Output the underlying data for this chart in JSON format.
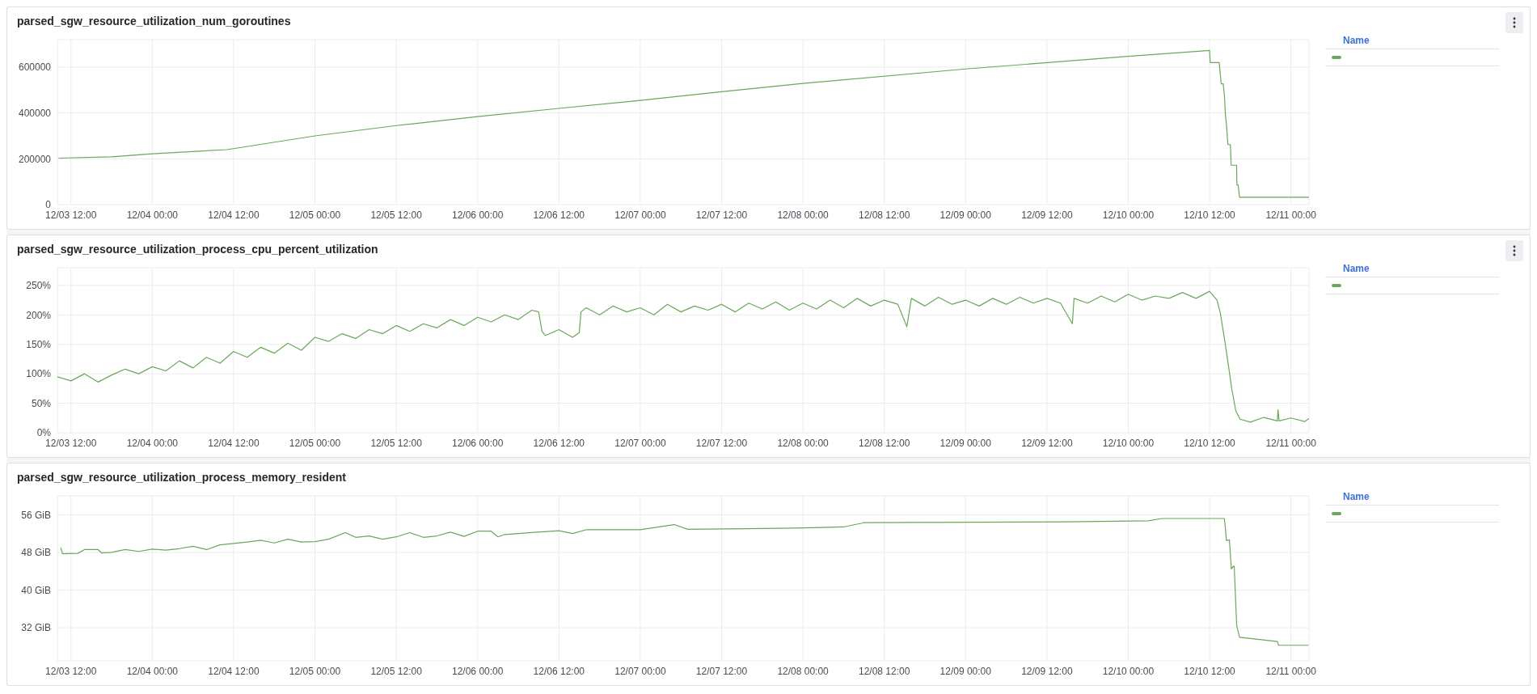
{
  "chart_data": [
    {
      "type": "line",
      "title": "parsed_sgw_resource_utilization_num_goroutines",
      "legend_title": "Name",
      "grid": true,
      "marker": "none",
      "xlim": [
        "--12-03T10:00",
        "--12-11T02:40"
      ],
      "xticks": [
        {
          "value": "--12-03T12:00",
          "label": "12/03 12:00"
        },
        {
          "value": "--12-04T00:00",
          "label": "12/04 00:00"
        },
        {
          "value": "--12-04T12:00",
          "label": "12/04 12:00"
        },
        {
          "value": "--12-05T00:00",
          "label": "12/05 00:00"
        },
        {
          "value": "--12-05T12:00",
          "label": "12/05 12:00"
        },
        {
          "value": "--12-06T00:00",
          "label": "12/06 00:00"
        },
        {
          "value": "--12-06T12:00",
          "label": "12/06 12:00"
        },
        {
          "value": "--12-07T00:00",
          "label": "12/07 00:00"
        },
        {
          "value": "--12-07T12:00",
          "label": "12/07 12:00"
        },
        {
          "value": "--12-08T00:00",
          "label": "12/08 00:00"
        },
        {
          "value": "--12-08T12:00",
          "label": "12/08 12:00"
        },
        {
          "value": "--12-09T00:00",
          "label": "12/09 00:00"
        },
        {
          "value": "--12-09T12:00",
          "label": "12/09 12:00"
        },
        {
          "value": "--12-10T00:00",
          "label": "12/10 00:00"
        },
        {
          "value": "--12-10T12:00",
          "label": "12/10 12:00"
        },
        {
          "value": "--12-11T00:00",
          "label": "12/11 00:00"
        }
      ],
      "ylim": [
        0,
        720000
      ],
      "yticks": [
        0,
        200000,
        400000,
        600000
      ],
      "x": [
        "--12-03T10:10",
        "--12-03T18:00",
        "--12-04T00:00",
        "--12-04T11:00",
        "--12-05T00:00",
        "--12-05T12:00",
        "--12-06T00:00",
        "--12-06T12:00",
        "--12-07T00:00",
        "--12-07T12:00",
        "--12-08T00:00",
        "--12-09T00:00",
        "--12-10T00:00",
        "--12-10T12:00",
        "--12-10T12:05",
        "--12-10T13:25",
        "--12-10T13:43",
        "--12-10T14:01",
        "--12-10T14:12",
        "--12-10T14:20",
        "--12-10T14:31",
        "--12-10T14:42",
        "--12-10T15:04",
        "--12-10T15:11",
        "--12-10T15:59",
        "--12-10T16:02",
        "--12-10T16:13",
        "--12-10T16:25",
        "--12-11T02:40"
      ],
      "series": [
        {
          "color": "#6aa85a",
          "values": [
            203000,
            209000,
            222000,
            240000,
            300000,
            345000,
            384000,
            420000,
            455000,
            493000,
            529000,
            592000,
            647000,
            673000,
            620000,
            620000,
            527000,
            527000,
            471000,
            393000,
            340000,
            262000,
            262000,
            172000,
            172000,
            86000,
            86000,
            32000,
            32000
          ]
        }
      ]
    },
    {
      "type": "line",
      "title": "parsed_sgw_resource_utilization_process_cpu_percent_utilization",
      "legend_title": "Name",
      "grid": true,
      "marker": "none",
      "xlim": [
        "--12-03T10:00",
        "--12-11T02:40"
      ],
      "xticks": [
        {
          "value": "--12-03T12:00",
          "label": "12/03 12:00"
        },
        {
          "value": "--12-04T00:00",
          "label": "12/04 00:00"
        },
        {
          "value": "--12-04T12:00",
          "label": "12/04 12:00"
        },
        {
          "value": "--12-05T00:00",
          "label": "12/05 00:00"
        },
        {
          "value": "--12-05T12:00",
          "label": "12/05 12:00"
        },
        {
          "value": "--12-06T00:00",
          "label": "12/06 00:00"
        },
        {
          "value": "--12-06T12:00",
          "label": "12/06 12:00"
        },
        {
          "value": "--12-07T00:00",
          "label": "12/07 00:00"
        },
        {
          "value": "--12-07T12:00",
          "label": "12/07 12:00"
        },
        {
          "value": "--12-08T00:00",
          "label": "12/08 00:00"
        },
        {
          "value": "--12-08T12:00",
          "label": "12/08 12:00"
        },
        {
          "value": "--12-09T00:00",
          "label": "12/09 00:00"
        },
        {
          "value": "--12-09T12:00",
          "label": "12/09 12:00"
        },
        {
          "value": "--12-10T00:00",
          "label": "12/10 00:00"
        },
        {
          "value": "--12-10T12:00",
          "label": "12/10 12:00"
        },
        {
          "value": "--12-11T00:00",
          "label": "12/11 00:00"
        }
      ],
      "ylim": [
        0,
        280
      ],
      "yticks": [
        {
          "value": 0,
          "label": "0%"
        },
        {
          "value": 50,
          "label": "50%"
        },
        {
          "value": 100,
          "label": "100%"
        },
        {
          "value": 150,
          "label": "150%"
        },
        {
          "value": 200,
          "label": "200%"
        },
        {
          "value": 250,
          "label": "250%"
        }
      ],
      "x": [
        "--12-03T10:00",
        "--12-03T12:00",
        "--12-03T14:00",
        "--12-03T16:00",
        "--12-03T18:00",
        "--12-03T20:00",
        "--12-03T22:00",
        "--12-04T00:00",
        "--12-04T02:00",
        "--12-04T04:00",
        "--12-04T06:00",
        "--12-04T08:00",
        "--12-04T10:00",
        "--12-04T12:00",
        "--12-04T14:00",
        "--12-04T16:00",
        "--12-04T18:00",
        "--12-04T20:00",
        "--12-04T22:00",
        "--12-05T00:00",
        "--12-05T02:00",
        "--12-05T04:00",
        "--12-05T06:00",
        "--12-05T08:00",
        "--12-05T10:00",
        "--12-05T12:00",
        "--12-05T14:00",
        "--12-05T16:00",
        "--12-05T18:00",
        "--12-05T20:00",
        "--12-05T22:00",
        "--12-06T00:00",
        "--12-06T02:00",
        "--12-06T04:00",
        "--12-06T06:00",
        "--12-06T08:00",
        "--12-06T09:00",
        "--12-06T09:30",
        "--12-06T10:00",
        "--12-06T12:00",
        "--12-06T14:00",
        "--12-06T15:00",
        "--12-06T15:15",
        "--12-06T16:00",
        "--12-06T18:00",
        "--12-06T20:00",
        "--12-06T22:00",
        "--12-07T00:00",
        "--12-07T02:00",
        "--12-07T04:00",
        "--12-07T06:00",
        "--12-07T08:00",
        "--12-07T10:00",
        "--12-07T12:00",
        "--12-07T14:00",
        "--12-07T16:00",
        "--12-07T18:00",
        "--12-07T20:00",
        "--12-07T22:00",
        "--12-08T00:00",
        "--12-08T02:00",
        "--12-08T04:00",
        "--12-08T06:00",
        "--12-08T08:00",
        "--12-08T10:00",
        "--12-08T12:00",
        "--12-08T14:00",
        "--12-08T15:20",
        "--12-08T16:00",
        "--12-08T18:00",
        "--12-08T20:00",
        "--12-08T22:00",
        "--12-09T00:00",
        "--12-09T02:00",
        "--12-09T04:00",
        "--12-09T06:00",
        "--12-09T08:00",
        "--12-09T10:00",
        "--12-09T12:00",
        "--12-09T14:00",
        "--12-09T15:45",
        "--12-09T16:00",
        "--12-09T18:00",
        "--12-09T20:00",
        "--12-09T22:00",
        "--12-10T00:00",
        "--12-10T02:00",
        "--12-10T04:00",
        "--12-10T06:00",
        "--12-10T08:00",
        "--12-10T10:00",
        "--12-10T12:00",
        "--12-10T13:06",
        "--12-10T13:35",
        "--12-10T14:19",
        "--12-10T14:49",
        "--12-10T15:15",
        "--12-10T15:52",
        "--12-10T16:30",
        "--12-10T18:00",
        "--12-10T20:00",
        "--12-10T22:00",
        "--12-10T22:06",
        "--12-10T22:15",
        "--12-11T00:00",
        "--12-11T02:00",
        "--12-11T02:40"
      ],
      "series": [
        {
          "color": "#6aa85a",
          "values": [
            95,
            88,
            100,
            86,
            98,
            108,
            100,
            112,
            105,
            122,
            110,
            128,
            118,
            138,
            128,
            145,
            135,
            152,
            140,
            162,
            155,
            168,
            160,
            175,
            168,
            182,
            172,
            185,
            178,
            192,
            182,
            196,
            188,
            200,
            192,
            208,
            205,
            172,
            165,
            175,
            162,
            170,
            205,
            212,
            200,
            215,
            205,
            212,
            200,
            218,
            205,
            215,
            208,
            218,
            205,
            220,
            210,
            222,
            208,
            220,
            210,
            225,
            212,
            228,
            215,
            225,
            218,
            180,
            228,
            215,
            230,
            218,
            225,
            215,
            228,
            218,
            230,
            220,
            228,
            220,
            185,
            228,
            220,
            232,
            222,
            235,
            225,
            232,
            228,
            238,
            228,
            240,
            225,
            203,
            150,
            111,
            76,
            37,
            23,
            18,
            26,
            20,
            39,
            20,
            25,
            19,
            24
          ]
        }
      ]
    },
    {
      "type": "line",
      "title": "parsed_sgw_resource_utilization_process_memory_resident",
      "legend_title": "Name",
      "grid": true,
      "marker": "none",
      "xlim": [
        "--12-03T10:00",
        "--12-11T02:40"
      ],
      "xticks": [
        {
          "value": "--12-03T12:00",
          "label": "12/03 12:00"
        },
        {
          "value": "--12-04T00:00",
          "label": "12/04 00:00"
        },
        {
          "value": "--12-04T12:00",
          "label": "12/04 12:00"
        },
        {
          "value": "--12-05T00:00",
          "label": "12/05 00:00"
        },
        {
          "value": "--12-05T12:00",
          "label": "12/05 12:00"
        },
        {
          "value": "--12-06T00:00",
          "label": "12/06 00:00"
        },
        {
          "value": "--12-06T12:00",
          "label": "12/06 12:00"
        },
        {
          "value": "--12-07T00:00",
          "label": "12/07 00:00"
        },
        {
          "value": "--12-07T12:00",
          "label": "12/07 12:00"
        },
        {
          "value": "--12-08T00:00",
          "label": "12/08 00:00"
        },
        {
          "value": "--12-08T12:00",
          "label": "12/08 12:00"
        },
        {
          "value": "--12-09T00:00",
          "label": "12/09 00:00"
        },
        {
          "value": "--12-09T12:00",
          "label": "12/09 12:00"
        },
        {
          "value": "--12-10T00:00",
          "label": "12/10 00:00"
        },
        {
          "value": "--12-10T12:00",
          "label": "12/10 12:00"
        },
        {
          "value": "--12-11T00:00",
          "label": "12/11 00:00"
        }
      ],
      "ylim": [
        25,
        60
      ],
      "yticks": [
        {
          "value": 32,
          "label": "32 GiB"
        },
        {
          "value": 40,
          "label": "40 GiB"
        },
        {
          "value": 48,
          "label": "48 GiB"
        },
        {
          "value": 56,
          "label": "56 GiB"
        }
      ],
      "x": [
        "--12-03T10:30",
        "--12-03T10:45",
        "--12-03T13:00",
        "--12-03T14:00",
        "--12-03T16:00",
        "--12-03T16:30",
        "--12-03T18:00",
        "--12-03T20:00",
        "--12-03T22:00",
        "--12-04T00:00",
        "--12-04T02:00",
        "--12-04T04:00",
        "--12-04T06:00",
        "--12-04T08:00",
        "--12-04T10:00",
        "--12-04T12:00",
        "--12-04T14:00",
        "--12-04T16:00",
        "--12-04T18:00",
        "--12-04T20:00",
        "--12-04T22:00",
        "--12-05T00:00",
        "--12-05T02:00",
        "--12-05T04:30",
        "--12-05T06:00",
        "--12-05T08:00",
        "--12-05T10:00",
        "--12-05T12:00",
        "--12-05T14:00",
        "--12-05T16:00",
        "--12-05T18:00",
        "--12-05T20:00",
        "--12-05T22:00",
        "--12-06T00:00",
        "--12-06T02:00",
        "--12-06T03:00",
        "--12-06T04:00",
        "--12-06T06:00",
        "--12-06T08:00",
        "--12-06T12:00",
        "--12-06T14:00",
        "--12-06T16:00",
        "--12-07T00:00",
        "--12-07T05:00",
        "--12-07T07:00",
        "--12-07T21:00",
        "--12-08T06:00",
        "--12-08T09:00",
        "--12-09T15:00",
        "--12-10T03:00",
        "--12-10T05:00",
        "--12-10T14:11",
        "--12-10T14:22",
        "--12-10T14:29",
        "--12-10T14:55",
        "--12-10T15:13",
        "--12-10T15:31",
        "--12-10T15:38",
        "--12-10T16:00",
        "--12-10T16:25",
        "--12-10T18:50",
        "--12-10T22:00",
        "--12-10T22:10",
        "--12-11T02:35"
      ],
      "series": [
        {
          "color": "#6aa85a",
          "values": [
            49,
            47.7,
            47.8,
            48.6,
            48.6,
            47.9,
            48,
            48.6,
            48.2,
            48.7,
            48.5,
            48.8,
            49.3,
            48.6,
            49.6,
            49.9,
            50.2,
            50.6,
            50,
            50.8,
            50.2,
            50.3,
            50.8,
            52.2,
            51.2,
            51.5,
            50.8,
            51.3,
            52.2,
            51.2,
            51.5,
            52.3,
            51.4,
            52.5,
            52.5,
            51.3,
            51.8,
            52,
            52.2,
            52.6,
            52,
            52.8,
            52.8,
            53.9,
            52.9,
            53.1,
            53.4,
            54.3,
            54.5,
            54.7,
            55.2,
            55.2,
            52.6,
            50.5,
            50.7,
            44.5,
            45.1,
            45,
            32.5,
            30,
            29.6,
            29.1,
            28.3,
            28.3
          ]
        }
      ]
    }
  ]
}
